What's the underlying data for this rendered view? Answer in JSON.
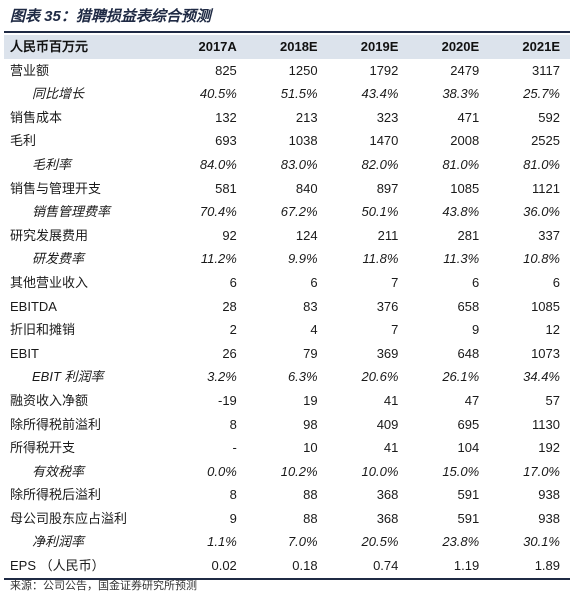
{
  "title": "图表 35：猎聘损益表综合预测",
  "header": {
    "label": "人民币百万元",
    "years": [
      "2017A",
      "2018E",
      "2019E",
      "2020E",
      "2021E"
    ]
  },
  "rows": [
    {
      "label": "营业额",
      "sub": false,
      "values": [
        "825",
        "1250",
        "1792",
        "2479",
        "3117"
      ]
    },
    {
      "label": "同比增长",
      "sub": true,
      "values": [
        "40.5%",
        "51.5%",
        "43.4%",
        "38.3%",
        "25.7%"
      ]
    },
    {
      "label": "销售成本",
      "sub": false,
      "values": [
        "132",
        "213",
        "323",
        "471",
        "592"
      ]
    },
    {
      "label": "毛利",
      "sub": false,
      "values": [
        "693",
        "1038",
        "1470",
        "2008",
        "2525"
      ]
    },
    {
      "label": "毛利率",
      "sub": true,
      "values": [
        "84.0%",
        "83.0%",
        "82.0%",
        "81.0%",
        "81.0%"
      ]
    },
    {
      "label": "销售与管理开支",
      "sub": false,
      "values": [
        "581",
        "840",
        "897",
        "1085",
        "1121"
      ]
    },
    {
      "label": "销售管理费率",
      "sub": true,
      "values": [
        "70.4%",
        "67.2%",
        "50.1%",
        "43.8%",
        "36.0%"
      ]
    },
    {
      "label": "研究发展费用",
      "sub": false,
      "values": [
        "92",
        "124",
        "211",
        "281",
        "337"
      ]
    },
    {
      "label": "研发费率",
      "sub": true,
      "values": [
        "11.2%",
        "9.9%",
        "11.8%",
        "11.3%",
        "10.8%"
      ]
    },
    {
      "label": "其他营业收入",
      "sub": false,
      "values": [
        "6",
        "6",
        "7",
        "6",
        "6"
      ]
    },
    {
      "label": "EBITDA",
      "sub": false,
      "values": [
        "28",
        "83",
        "376",
        "658",
        "1085"
      ]
    },
    {
      "label": "折旧和摊销",
      "sub": false,
      "values": [
        "2",
        "4",
        "7",
        "9",
        "12"
      ]
    },
    {
      "label": "EBIT",
      "sub": false,
      "values": [
        "26",
        "79",
        "369",
        "648",
        "1073"
      ]
    },
    {
      "label": "EBIT 利润率",
      "sub": true,
      "values": [
        "3.2%",
        "6.3%",
        "20.6%",
        "26.1%",
        "34.4%"
      ]
    },
    {
      "label": "融资收入净额",
      "sub": false,
      "values": [
        "-19",
        "19",
        "41",
        "47",
        "57"
      ]
    },
    {
      "label": "除所得税前溢利",
      "sub": false,
      "values": [
        "8",
        "98",
        "409",
        "695",
        "1130"
      ]
    },
    {
      "label": "所得税开支",
      "sub": false,
      "values": [
        "-",
        "10",
        "41",
        "104",
        "192"
      ]
    },
    {
      "label": "有效税率",
      "sub": true,
      "values": [
        "0.0%",
        "10.2%",
        "10.0%",
        "15.0%",
        "17.0%"
      ]
    },
    {
      "label": "除所得税后溢利",
      "sub": false,
      "values": [
        "8",
        "88",
        "368",
        "591",
        "938"
      ]
    },
    {
      "label": "母公司股东应占溢利",
      "sub": false,
      "values": [
        "9",
        "88",
        "368",
        "591",
        "938"
      ]
    },
    {
      "label": "净利润率",
      "sub": true,
      "values": [
        "1.1%",
        "7.0%",
        "20.5%",
        "23.8%",
        "30.1%"
      ]
    },
    {
      "label": "EPS （人民币）",
      "sub": false,
      "values": [
        "0.02",
        "0.18",
        "0.74",
        "1.19",
        "1.89"
      ]
    }
  ],
  "source": "来源：公司公告，国金证券研究所预测",
  "colors": {
    "accent": "#1f2a44",
    "header_bg": "#dce3ec"
  }
}
